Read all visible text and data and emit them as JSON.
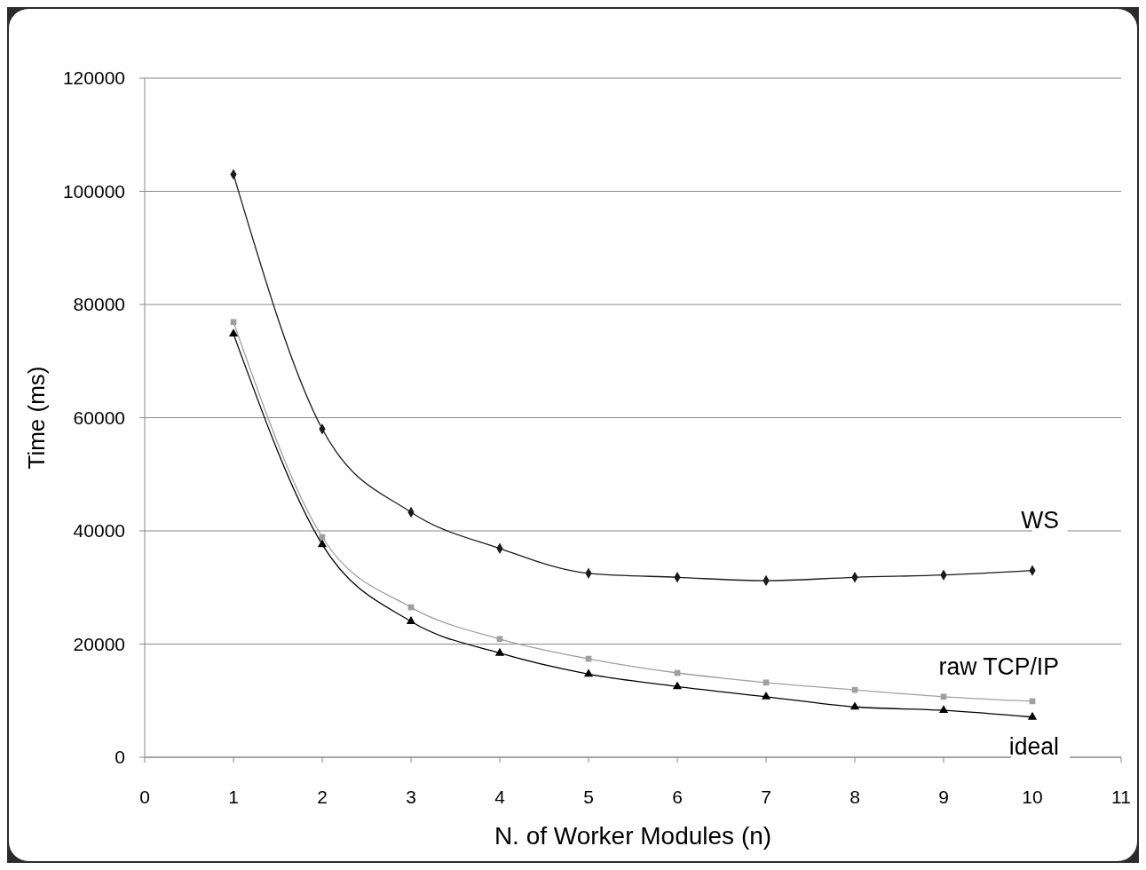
{
  "chart_data": {
    "type": "line",
    "xlabel": "N. of Worker Modules (n)",
    "ylabel": "Time (ms)",
    "x": [
      1,
      2,
      3,
      4,
      5,
      6,
      7,
      8,
      9,
      10
    ],
    "xlim": [
      0,
      11
    ],
    "xticks": [
      0,
      1,
      2,
      3,
      4,
      5,
      6,
      7,
      8,
      9,
      10,
      11
    ],
    "ylim": [
      0,
      120000
    ],
    "yticks": [
      0,
      20000,
      40000,
      60000,
      80000,
      100000,
      120000
    ],
    "grid": "y",
    "series": [
      {
        "name": "WS",
        "color": "#1a1a1a",
        "marker": "diamond",
        "values": [
          103000,
          58000,
          43300,
          36900,
          32500,
          31800,
          31200,
          31800,
          32200,
          33000
        ]
      },
      {
        "name": "raw TCP/IP",
        "color": "#a0a0a0",
        "marker": "square",
        "values": [
          76900,
          38900,
          26500,
          20900,
          17400,
          14900,
          13200,
          11900,
          10700,
          9900
        ]
      },
      {
        "name": "ideal",
        "color": "#000000",
        "marker": "triangle",
        "values": [
          74800,
          37600,
          24000,
          18400,
          14700,
          12500,
          10700,
          8900,
          8300,
          7100
        ]
      }
    ]
  }
}
